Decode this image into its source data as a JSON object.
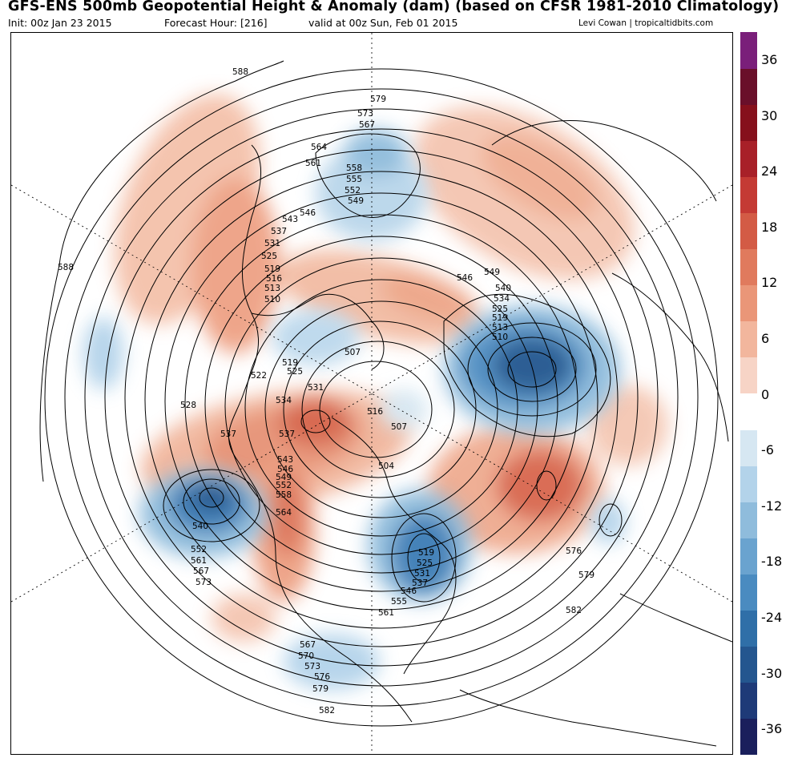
{
  "header": {
    "title": "GFS-ENS 500mb Geopotential Height & Anomaly (dam) (based on CFSR 1981-2010 Climatology)",
    "init": "Init: 00z Jan 23 2015",
    "forecast_hour": "Forecast Hour: [216]",
    "valid": "valid at 00z Sun, Feb 01 2015",
    "credit": "Levi Cowan | tropicaltidbits.com"
  },
  "colorbar": {
    "colors": [
      "#1a1f5c",
      "#1e3a78",
      "#24568f",
      "#2f6fa8",
      "#4a8bc0",
      "#6aa3cf",
      "#8fbcdc",
      "#b3d3ea",
      "#d6e7f2",
      "#ffffff",
      "#f7d4c6",
      "#f2b69d",
      "#ea9678",
      "#e07a5d",
      "#d35b45",
      "#c43a34",
      "#a82028",
      "#86101c",
      "#6a0f2a",
      "#7a1f7a"
    ],
    "tick_labels": [
      "36",
      "30",
      "24",
      "18",
      "12",
      "6",
      "0",
      "-6",
      "-12",
      "-18",
      "-24",
      "-30",
      "-36"
    ]
  },
  "contour_labels": [
    "588",
    "579",
    "573",
    "567",
    "564",
    "561",
    "558",
    "555",
    "552",
    "549",
    "546",
    "543",
    "537",
    "531",
    "525",
    "519",
    "516",
    "513",
    "510",
    "588",
    "507",
    "519",
    "522",
    "525",
    "528",
    "531",
    "534",
    "537",
    "537",
    "516",
    "507",
    "543",
    "546",
    "549",
    "552",
    "558",
    "564",
    "504",
    "540",
    "552",
    "561",
    "567",
    "573",
    "549",
    "546",
    "540",
    "534",
    "525",
    "519",
    "513",
    "510",
    "519",
    "525",
    "531",
    "537",
    "546",
    "555",
    "561",
    "567",
    "570",
    "573",
    "576",
    "579",
    "582",
    "576",
    "579",
    "582"
  ]
}
